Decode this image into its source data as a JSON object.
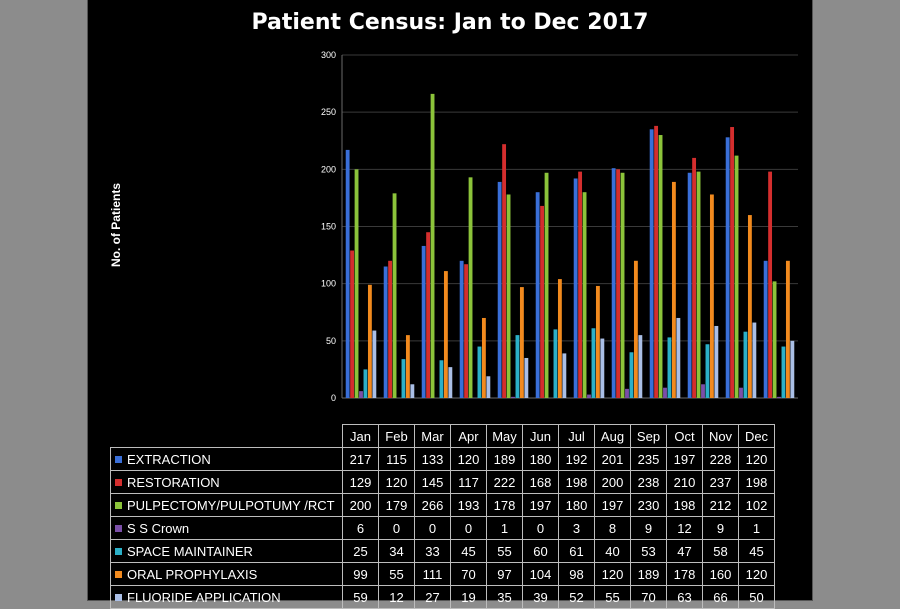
{
  "chart_data": {
    "type": "bar",
    "title": "Patient Census: Jan to Dec 2017",
    "xlabel": "",
    "ylabel": "No. of Patients",
    "ylim": [
      0,
      300
    ],
    "yticks": [
      "0",
      "50",
      "100",
      "150",
      "200",
      "250",
      "300"
    ],
    "legend_placement": "table-below",
    "grid": true,
    "categories": [
      "Jan",
      "Feb",
      "Mar",
      "Apr",
      "May",
      "Jun",
      "Jul",
      "Aug",
      "Sep",
      "Oct",
      "Nov",
      "Dec"
    ],
    "series": [
      {
        "name": "EXTRACTION",
        "color": "#3a6fd8",
        "values": [
          217,
          115,
          133,
          120,
          189,
          180,
          192,
          201,
          235,
          197,
          228,
          120
        ]
      },
      {
        "name": "RESTORATION",
        "color": "#d42e2e",
        "values": [
          129,
          120,
          145,
          117,
          222,
          168,
          198,
          200,
          238,
          210,
          237,
          198
        ]
      },
      {
        "name": "PULPECTOMY/PULPOTUMY /RCT",
        "color": "#8cc43a",
        "values": [
          200,
          179,
          266,
          193,
          178,
          197,
          180,
          197,
          230,
          198,
          212,
          102
        ]
      },
      {
        "name": "S S Crown",
        "color": "#7b4fa8",
        "values": [
          6,
          0,
          0,
          0,
          1,
          0,
          3,
          8,
          9,
          12,
          9,
          1
        ]
      },
      {
        "name": "SPACE MAINTAINER",
        "color": "#2bb0c8",
        "values": [
          25,
          34,
          33,
          45,
          55,
          60,
          61,
          40,
          53,
          47,
          58,
          45
        ]
      },
      {
        "name": "ORAL PROPHYLAXIS",
        "color": "#f28a1e",
        "values": [
          99,
          55,
          111,
          70,
          97,
          104,
          98,
          120,
          189,
          178,
          160,
          120
        ]
      },
      {
        "name": "FLUORIDE APPLICATION",
        "color": "#aabfe6",
        "values": [
          59,
          12,
          27,
          19,
          35,
          39,
          52,
          55,
          70,
          63,
          66,
          50
        ]
      }
    ]
  }
}
